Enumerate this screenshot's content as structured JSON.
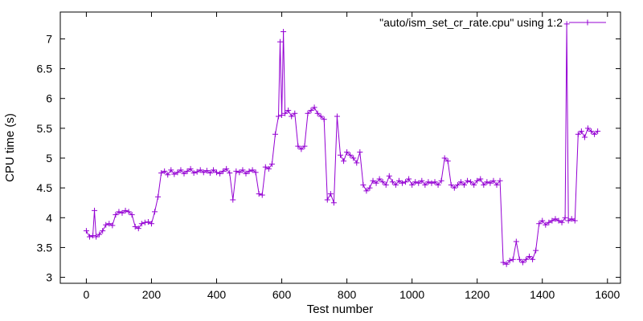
{
  "chart_data": {
    "type": "line",
    "title": "",
    "xlabel": "Test number",
    "ylabel": "CPU time (s)",
    "xlim": [
      -80,
      1640
    ],
    "ylim": [
      2.9,
      7.45
    ],
    "x_ticks": [
      0,
      200,
      400,
      600,
      800,
      1000,
      1200,
      1400,
      1600
    ],
    "x_tick_labels": [
      "0",
      "200",
      "400",
      "600",
      "800",
      "1000",
      "1200",
      "1400",
      "1600"
    ],
    "y_ticks": [
      3,
      3.5,
      4,
      4.5,
      5,
      5.5,
      6,
      6.5,
      7
    ],
    "y_tick_labels": [
      "3",
      "3.5",
      "4",
      "4.5",
      "5",
      "5.5",
      "6",
      "6.5",
      "7"
    ],
    "grid": false,
    "legend_position": "top-right",
    "series": [
      {
        "name": "\"auto/ism_set_cr_rate.cpu\" using 1:2",
        "color": "#9400d3",
        "marker": "plus",
        "x": [
          0,
          10,
          20,
          25,
          30,
          40,
          50,
          60,
          70,
          80,
          90,
          100,
          110,
          120,
          130,
          140,
          150,
          160,
          170,
          180,
          190,
          200,
          210,
          220,
          230,
          240,
          250,
          260,
          270,
          280,
          290,
          300,
          310,
          320,
          330,
          340,
          350,
          360,
          370,
          380,
          390,
          400,
          410,
          420,
          430,
          440,
          450,
          460,
          470,
          480,
          490,
          500,
          510,
          520,
          530,
          540,
          550,
          560,
          570,
          580,
          590,
          595,
          600,
          605,
          610,
          620,
          630,
          640,
          650,
          660,
          670,
          680,
          690,
          700,
          710,
          720,
          730,
          740,
          750,
          760,
          770,
          780,
          790,
          800,
          810,
          820,
          830,
          840,
          850,
          860,
          870,
          880,
          890,
          900,
          910,
          920,
          930,
          940,
          950,
          960,
          970,
          980,
          990,
          1000,
          1010,
          1020,
          1030,
          1040,
          1050,
          1060,
          1070,
          1080,
          1090,
          1100,
          1110,
          1120,
          1130,
          1140,
          1150,
          1160,
          1170,
          1180,
          1190,
          1200,
          1210,
          1220,
          1230,
          1240,
          1250,
          1260,
          1270,
          1280,
          1290,
          1300,
          1310,
          1320,
          1330,
          1340,
          1350,
          1360,
          1370,
          1380,
          1390,
          1400,
          1410,
          1420,
          1430,
          1440,
          1450,
          1460,
          1470,
          1475,
          1480,
          1490,
          1500,
          1510,
          1520,
          1530,
          1540,
          1550,
          1560,
          1570
        ],
        "y": [
          3.78,
          3.68,
          3.7,
          4.12,
          3.68,
          3.72,
          3.78,
          3.88,
          3.9,
          3.87,
          4.05,
          4.1,
          4.08,
          4.12,
          4.1,
          4.05,
          3.85,
          3.82,
          3.9,
          3.92,
          3.93,
          3.9,
          4.1,
          4.35,
          4.75,
          4.78,
          4.72,
          4.8,
          4.73,
          4.76,
          4.8,
          4.74,
          4.78,
          4.82,
          4.75,
          4.77,
          4.8,
          4.76,
          4.79,
          4.75,
          4.8,
          4.76,
          4.74,
          4.78,
          4.82,
          4.75,
          4.3,
          4.78,
          4.76,
          4.8,
          4.74,
          4.78,
          4.8,
          4.76,
          4.4,
          4.38,
          4.85,
          4.82,
          4.9,
          5.4,
          5.7,
          6.95,
          5.72,
          7.12,
          5.75,
          5.8,
          5.7,
          5.75,
          5.2,
          5.15,
          5.2,
          5.75,
          5.8,
          5.85,
          5.75,
          5.7,
          5.65,
          4.3,
          4.4,
          4.25,
          5.7,
          5.05,
          4.95,
          5.1,
          5.05,
          5.0,
          4.92,
          5.1,
          4.55,
          4.45,
          4.5,
          4.62,
          4.58,
          4.65,
          4.6,
          4.55,
          4.7,
          4.6,
          4.55,
          4.62,
          4.58,
          4.6,
          4.65,
          4.55,
          4.6,
          4.58,
          4.62,
          4.55,
          4.6,
          4.58,
          4.6,
          4.55,
          4.62,
          5.0,
          4.95,
          4.55,
          4.5,
          4.55,
          4.6,
          4.55,
          4.62,
          4.6,
          4.55,
          4.62,
          4.65,
          4.55,
          4.6,
          4.58,
          4.62,
          4.55,
          4.62,
          3.25,
          3.22,
          3.28,
          3.3,
          3.6,
          3.3,
          3.25,
          3.3,
          3.35,
          3.3,
          3.45,
          3.9,
          3.95,
          3.88,
          3.92,
          3.95,
          3.98,
          3.95,
          3.92,
          4.0,
          7.25,
          3.95,
          3.98,
          3.95,
          5.4,
          5.45,
          5.35,
          5.5,
          5.45,
          5.4,
          5.45
        ]
      }
    ]
  }
}
